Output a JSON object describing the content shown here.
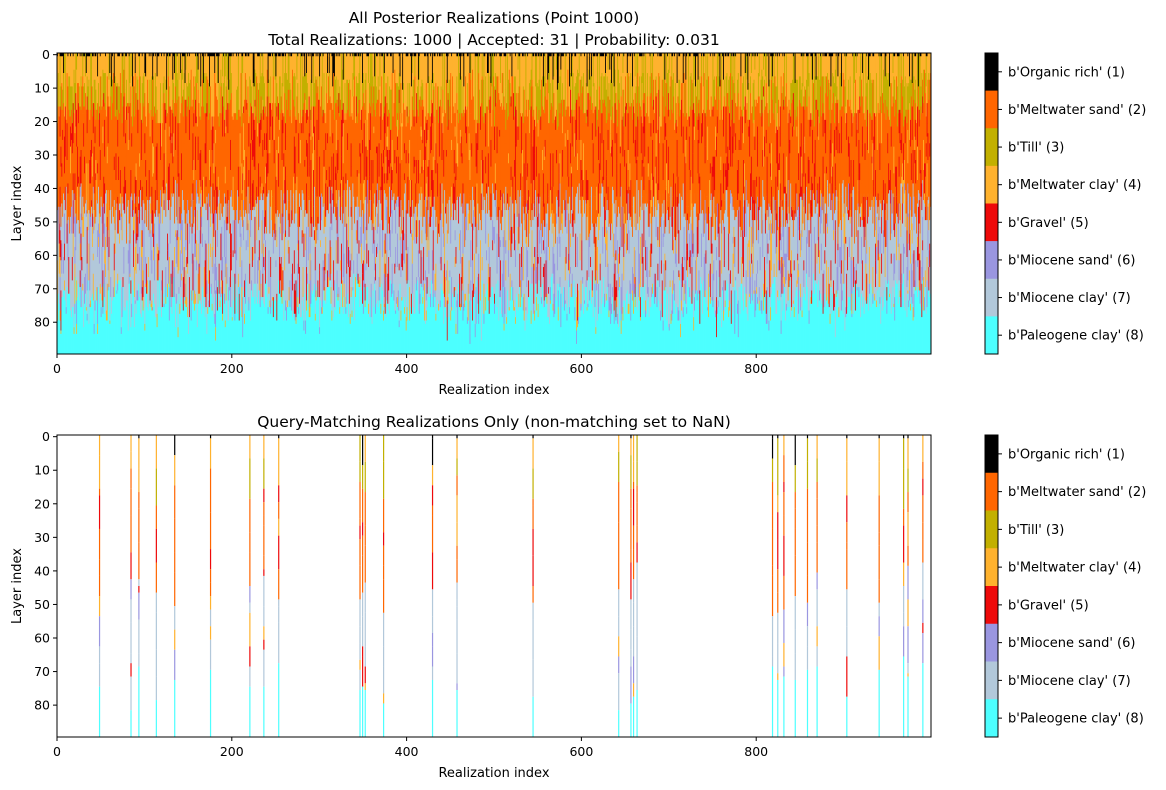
{
  "colormap": [
    {
      "code": 1,
      "label": "b'Organic rich' (1)",
      "color": "#000000"
    },
    {
      "code": 2,
      "label": "b'Meltwater sand' (2)",
      "color": "#ff6600"
    },
    {
      "code": 3,
      "label": "b'Till' (3)",
      "color": "#c2b000"
    },
    {
      "code": 4,
      "label": "b'Meltwater clay' (4)",
      "color": "#ffb22e"
    },
    {
      "code": 5,
      "label": "b'Gravel' (5)",
      "color": "#ee0a0a"
    },
    {
      "code": 6,
      "label": "b'Miocene sand' (6)",
      "color": "#9a96e0"
    },
    {
      "code": 7,
      "label": "b'Miocene clay' (7)",
      "color": "#b2c8da"
    },
    {
      "code": 8,
      "label": "b'Paleogene clay' (8)",
      "color": "#4dffff"
    }
  ],
  "chart_data": [
    {
      "type": "heatmap",
      "title": "All Posterior Realizations (Point 1000)\nTotal Realizations: 1000 | Accepted: 31 | Probability: 0.031",
      "title_lines": [
        "All Posterior Realizations (Point 1000)",
        "Total Realizations: 1000 | Accepted: 31 | Probability: 0.031"
      ],
      "xlabel": "Realization index",
      "ylabel": "Layer index",
      "xlim": [
        0,
        1000
      ],
      "ylim": [
        90,
        0
      ],
      "xticks": [
        0,
        200,
        400,
        600,
        800
      ],
      "yticks": [
        0,
        10,
        20,
        30,
        40,
        50,
        60,
        70,
        80
      ],
      "grid": false,
      "n_realizations": 1000,
      "n_layers": 90,
      "approx_unit_bands": [
        {
          "code": 4,
          "from_layer": 0,
          "to_layer": 10
        },
        {
          "code": 3,
          "from_layer": 10,
          "to_layer": 18
        },
        {
          "code": 2,
          "from_layer": 18,
          "to_layer": 42
        },
        {
          "code": 7,
          "from_layer": 42,
          "to_layer": 70
        },
        {
          "code": 8,
          "from_layer": 70,
          "to_layer": 90
        }
      ],
      "colorbar_labels": [
        "b'Organic rich' (1)",
        "b'Meltwater sand' (2)",
        "b'Till' (3)",
        "b'Meltwater clay' (4)",
        "b'Gravel' (5)",
        "b'Miocene sand' (6)",
        "b'Miocene clay' (7)",
        "b'Paleogene clay' (8)"
      ]
    },
    {
      "type": "heatmap",
      "title": "Query-Matching Realizations Only (non-matching set to NaN)",
      "xlabel": "Realization index",
      "ylabel": "Layer index",
      "xlim": [
        0,
        1000
      ],
      "ylim": [
        90,
        0
      ],
      "xticks": [
        0,
        200,
        400,
        600,
        800
      ],
      "yticks": [
        0,
        10,
        20,
        30,
        40,
        50,
        60,
        70,
        80
      ],
      "grid": false,
      "matching_realizations": [
        48,
        84,
        93,
        113,
        134,
        175,
        220,
        236,
        253,
        346,
        349,
        352,
        373,
        429,
        457,
        544,
        642,
        656,
        659,
        663,
        818,
        824,
        831,
        844,
        858,
        869,
        903,
        940,
        968,
        973,
        990
      ],
      "colorbar_labels": [
        "b'Organic rich' (1)",
        "b'Meltwater sand' (2)",
        "b'Till' (3)",
        "b'Meltwater clay' (4)",
        "b'Gravel' (5)",
        "b'Miocene sand' (6)",
        "b'Miocene clay' (7)",
        "b'Paleogene clay' (8)"
      ]
    }
  ]
}
